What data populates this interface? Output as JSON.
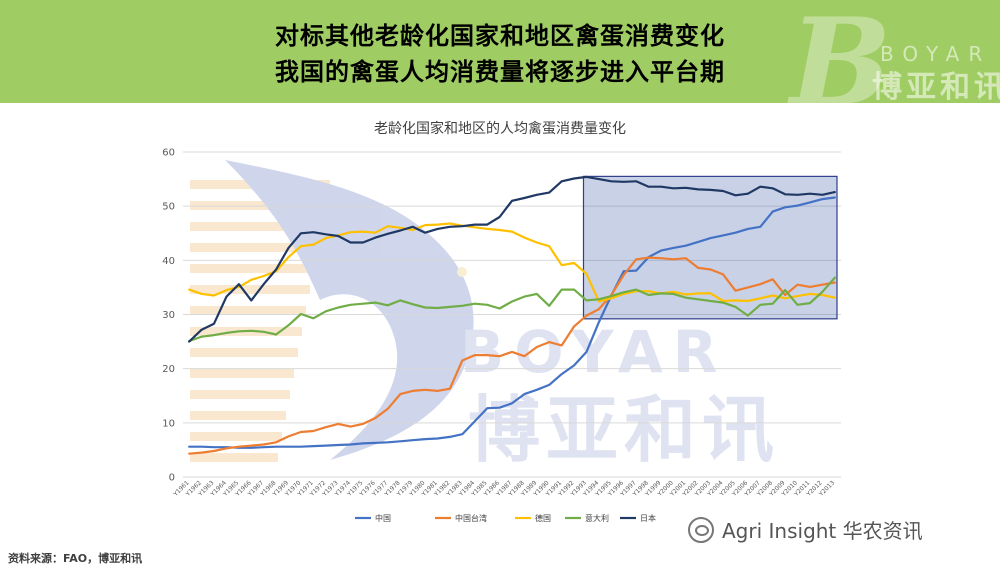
{
  "header": {
    "line1": "对标其他老龄化国家和地区禽蛋消费变化",
    "line2": "我国的禽蛋人均消费量将逐步进入平台期",
    "logo_en": "BOYAR",
    "logo_cn": "博亚和讯"
  },
  "watermark": {
    "logo_en": "BOYAR",
    "logo_cn": "博亚和讯",
    "wechat_text": "Agri Insight 华农资讯"
  },
  "source": "资料来源：FAO，博亚和讯",
  "colors": {
    "header_bg": "#9fcd63",
    "china": "#4472c4",
    "taiwan": "#ed7d31",
    "germany": "#ffc000",
    "italy": "#70ad47",
    "japan": "#203864",
    "highlight_box": "#3d5aa8"
  },
  "chart_data": {
    "type": "line",
    "title": "老龄化国家和地区的人均禽蛋消费量变化",
    "ylim": [
      0,
      60
    ],
    "yticks": [
      0,
      10,
      20,
      30,
      40,
      50,
      60
    ],
    "grid": true,
    "legend_position": "bottom",
    "highlight_range": [
      "Y1993",
      "Y2013"
    ],
    "categories": [
      "Y1961",
      "Y1962",
      "Y1963",
      "Y1964",
      "Y1965",
      "Y1966",
      "Y1967",
      "Y1968",
      "Y1969",
      "Y1970",
      "Y1971",
      "Y1972",
      "Y1973",
      "Y1974",
      "Y1975",
      "Y1976",
      "Y1977",
      "Y1978",
      "Y1979",
      "Y1980",
      "Y1981",
      "Y1982",
      "Y1983",
      "Y1984",
      "Y1985",
      "Y1986",
      "Y1987",
      "Y1988",
      "Y1989",
      "Y1990",
      "Y1991",
      "Y1992",
      "Y1993",
      "Y1994",
      "Y1995",
      "Y1996",
      "Y1997",
      "Y1998",
      "Y1999",
      "Y2000",
      "Y2001",
      "Y2002",
      "Y2003",
      "Y2004",
      "Y2005",
      "Y2006",
      "Y2007",
      "Y2008",
      "Y2009",
      "Y2010",
      "Y2011",
      "Y2012",
      "Y2013"
    ],
    "series": [
      {
        "name": "中国",
        "color": "#4472c4",
        "values": [
          5.6,
          5.6,
          5.5,
          5.5,
          5.4,
          5.4,
          5.5,
          5.6,
          5.6,
          5.6,
          5.7,
          5.8,
          5.9,
          6.0,
          6.2,
          6.3,
          6.4,
          6.6,
          6.8,
          7.0,
          7.1,
          7.4,
          7.9,
          10.3,
          12.7,
          12.8,
          13.6,
          15.3,
          16.1,
          17.0,
          19.0,
          20.6,
          23.1,
          28.6,
          33.5,
          38.0,
          38.1,
          40.6,
          41.8,
          42.3,
          42.7,
          43.4,
          44.1,
          44.6,
          45.1,
          45.8,
          46.2,
          49.0,
          49.8,
          50.1,
          50.7,
          51.3,
          51.6
        ]
      },
      {
        "name": "中国台湾",
        "color": "#ed7d31",
        "values": [
          4.3,
          4.5,
          4.8,
          5.3,
          5.6,
          5.8,
          6.0,
          6.4,
          7.5,
          8.3,
          8.5,
          9.2,
          9.8,
          9.3,
          9.8,
          10.9,
          12.6,
          15.3,
          15.9,
          16.1,
          15.9,
          16.3,
          21.5,
          22.5,
          22.5,
          22.3,
          23.1,
          22.3,
          24.0,
          24.9,
          24.3,
          27.8,
          29.8,
          31.0,
          33.6,
          37.3,
          40.2,
          40.5,
          40.4,
          40.2,
          40.4,
          38.6,
          38.3,
          37.4,
          34.4,
          35.0,
          35.6,
          36.5,
          33.6,
          35.5,
          35.1,
          35.5,
          35.9
        ]
      },
      {
        "name": "德国",
        "color": "#ffc000",
        "values": [
          34.6,
          33.8,
          33.5,
          34.5,
          35.1,
          36.4,
          37.1,
          38.0,
          40.6,
          42.6,
          42.9,
          44.1,
          44.6,
          45.2,
          45.3,
          45.1,
          46.3,
          46.0,
          45.6,
          46.5,
          46.6,
          46.8,
          46.4,
          46.1,
          45.8,
          45.6,
          45.3,
          44.2,
          43.3,
          42.6,
          39.1,
          39.5,
          37.5,
          32.4,
          33.0,
          33.8,
          34.3,
          34.3,
          33.9,
          34.2,
          33.7,
          33.9,
          33.9,
          32.5,
          32.6,
          32.5,
          33.0,
          33.5,
          33.0,
          33.4,
          33.8,
          33.6,
          33.1
        ]
      },
      {
        "name": "意大利",
        "color": "#70ad47",
        "values": [
          25.1,
          25.9,
          26.2,
          26.6,
          26.9,
          27.0,
          26.8,
          26.3,
          28.0,
          30.1,
          29.3,
          30.6,
          31.3,
          31.8,
          32.0,
          32.2,
          31.7,
          32.6,
          31.9,
          31.3,
          31.2,
          31.4,
          31.6,
          32.0,
          31.8,
          31.1,
          32.4,
          33.3,
          33.8,
          31.6,
          34.6,
          34.6,
          32.6,
          32.8,
          33.4,
          34.1,
          34.6,
          33.6,
          33.9,
          33.8,
          33.1,
          32.8,
          32.5,
          32.2,
          31.4,
          29.8,
          31.8,
          32.0,
          34.5,
          31.8,
          32.1,
          34.2,
          36.8
        ]
      },
      {
        "name": "日本",
        "color": "#203864",
        "values": [
          25.0,
          27.2,
          28.3,
          33.3,
          35.6,
          32.6,
          35.6,
          38.3,
          42.3,
          45.0,
          45.2,
          44.8,
          44.5,
          43.3,
          43.3,
          44.2,
          44.9,
          45.5,
          46.2,
          45.1,
          45.8,
          46.2,
          46.3,
          46.6,
          46.6,
          48.0,
          51.0,
          51.5,
          52.1,
          52.5,
          54.6,
          55.1,
          55.4,
          55.0,
          54.6,
          54.5,
          54.6,
          53.6,
          53.6,
          53.3,
          53.4,
          53.1,
          53.0,
          52.8,
          52.0,
          52.3,
          53.6,
          53.3,
          52.2,
          52.1,
          52.3,
          52.1,
          52.6
        ]
      }
    ]
  }
}
